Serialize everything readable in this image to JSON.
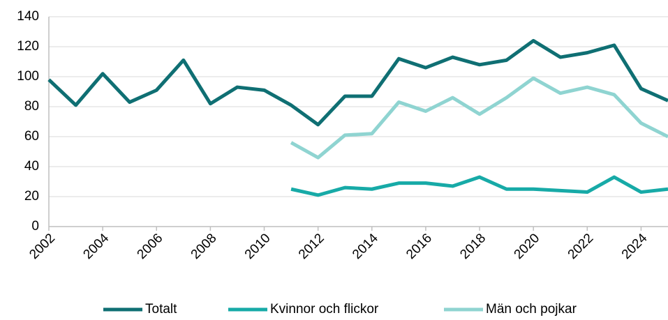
{
  "chart_data": {
    "type": "line",
    "x": [
      2002,
      2003,
      2004,
      2005,
      2006,
      2007,
      2008,
      2009,
      2010,
      2011,
      2012,
      2013,
      2014,
      2015,
      2016,
      2017,
      2018,
      2019,
      2020,
      2021,
      2022,
      2023,
      2024,
      2025
    ],
    "xlim": [
      2002,
      2025
    ],
    "xticks": [
      2002,
      2004,
      2006,
      2008,
      2010,
      2012,
      2014,
      2016,
      2018,
      2020,
      2022,
      2024
    ],
    "ylim": [
      0,
      140
    ],
    "yticks": [
      0,
      20,
      40,
      60,
      80,
      100,
      120,
      140
    ],
    "grid": true,
    "legend": "bottom",
    "series": [
      {
        "name": "Totalt",
        "color": "#0f6f73",
        "values": [
          98,
          81,
          102,
          83,
          91,
          111,
          82,
          93,
          91,
          81,
          68,
          87,
          87,
          112,
          106,
          113,
          108,
          111,
          124,
          113,
          116,
          121,
          92,
          84
        ]
      },
      {
        "name": "Kvinnor och flickor",
        "color": "#17aaa7",
        "values": [
          null,
          null,
          null,
          null,
          null,
          null,
          null,
          null,
          null,
          25,
          21,
          26,
          25,
          29,
          29,
          27,
          33,
          25,
          25,
          24,
          23,
          33,
          23,
          25
        ]
      },
      {
        "name": "Män och pojkar",
        "color": "#8fd4d1",
        "values": [
          null,
          null,
          null,
          null,
          null,
          null,
          null,
          null,
          null,
          56,
          46,
          61,
          62,
          83,
          77,
          86,
          75,
          86,
          99,
          89,
          93,
          88,
          69,
          60
        ]
      }
    ]
  }
}
